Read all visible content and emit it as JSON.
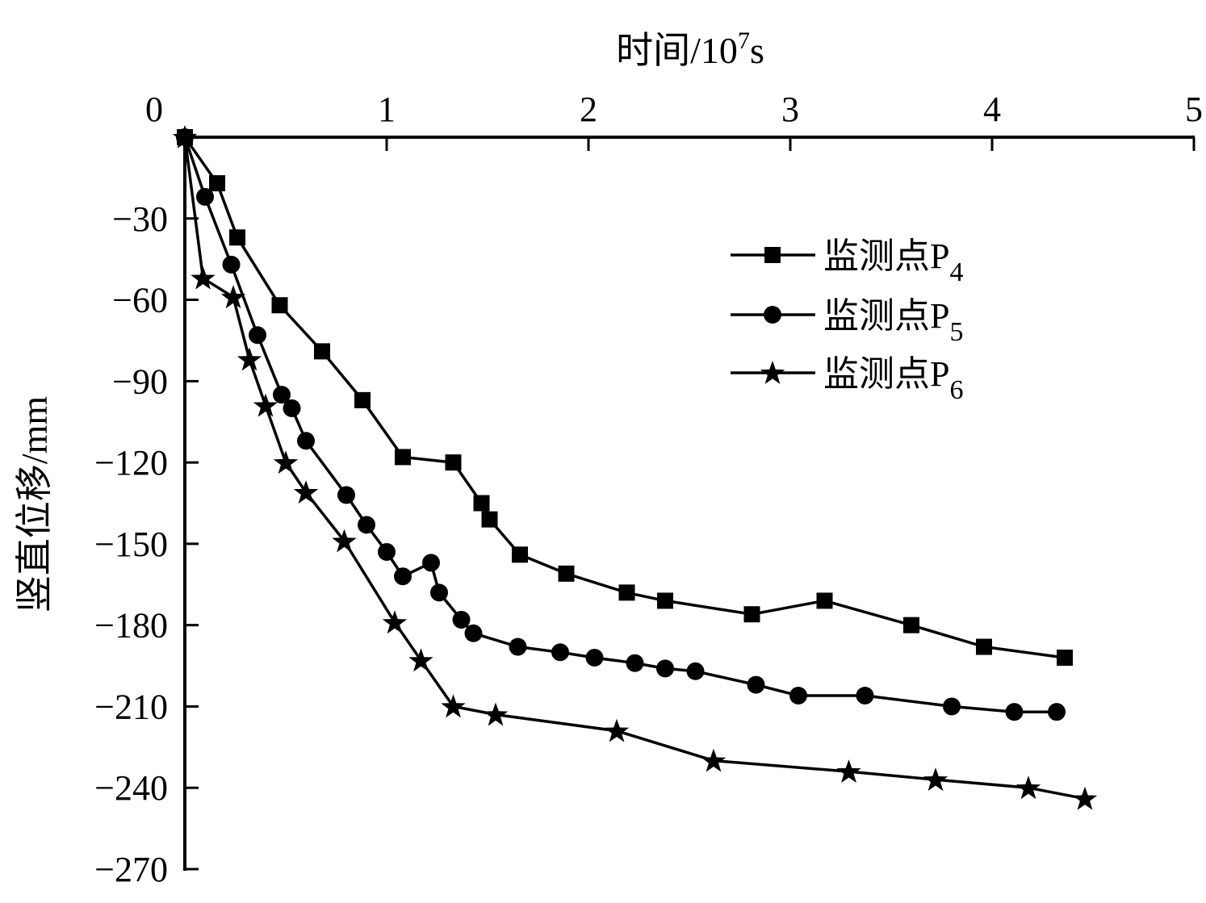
{
  "chart_data": {
    "type": "line",
    "title": "",
    "xlabel": "时间/10^7s",
    "xlabel_parts": {
      "main": "时间/10",
      "sup": "7",
      "unit": "s"
    },
    "ylabel": "竖直位移/mm",
    "xlim": [
      0,
      5
    ],
    "ylim": [
      -270,
      0
    ],
    "x_axis_position": "top",
    "x_ticks": [
      0,
      1,
      2,
      3,
      4,
      5
    ],
    "x_tick_labels": [
      "0",
      "1",
      "2",
      "3",
      "4",
      "5"
    ],
    "y_ticks": [
      0,
      -30,
      -60,
      -90,
      -120,
      -150,
      -180,
      -210,
      -240,
      -270
    ],
    "y_tick_labels": [
      "",
      "−30",
      "−60",
      "−90",
      "−120",
      "−150",
      "−180",
      "−210",
      "−240",
      "−270"
    ],
    "grid": false,
    "legend_position": "upper right (inside)",
    "series": [
      {
        "name": "监测点P4",
        "label_main": "监测点P",
        "label_sub": "4",
        "marker": "square",
        "color": "#000000",
        "x": [
          0,
          0.16,
          0.26,
          0.47,
          0.68,
          0.88,
          1.08,
          1.33,
          1.47,
          1.51,
          1.66,
          1.89,
          2.19,
          2.38,
          2.81,
          3.17,
          3.6,
          3.96,
          4.36
        ],
        "y": [
          0,
          -17,
          -37,
          -62,
          -79,
          -97,
          -118,
          -120,
          -135,
          -141,
          -154,
          -161,
          -168,
          -171,
          -176,
          -171,
          -180,
          -188,
          -192
        ]
      },
      {
        "name": "监测点P5",
        "label_main": "监测点P",
        "label_sub": "5",
        "marker": "circle",
        "color": "#000000",
        "x": [
          0,
          0.1,
          0.23,
          0.36,
          0.48,
          0.53,
          0.6,
          0.8,
          0.9,
          1.0,
          1.08,
          1.22,
          1.26,
          1.37,
          1.43,
          1.65,
          1.86,
          2.03,
          2.23,
          2.38,
          2.53,
          2.83,
          3.04,
          3.37,
          3.8,
          4.11,
          4.32
        ],
        "y": [
          0,
          -22,
          -47,
          -73,
          -95,
          -100,
          -112,
          -132,
          -143,
          -153,
          -162,
          -157,
          -168,
          -178,
          -183,
          -188,
          -190,
          -192,
          -194,
          -196,
          -197,
          -202,
          -206,
          -206,
          -210,
          -212,
          -212
        ]
      },
      {
        "name": "监测点P6",
        "label_main": "监测点P",
        "label_sub": "6",
        "marker": "star",
        "color": "#000000",
        "x": [
          0,
          0.09,
          0.24,
          0.32,
          0.4,
          0.5,
          0.6,
          0.79,
          1.04,
          1.17,
          1.33,
          1.54,
          2.14,
          2.62,
          3.29,
          3.72,
          4.18,
          4.46
        ],
        "y": [
          0,
          -52,
          -59,
          -82,
          -99,
          -120,
          -131,
          -149,
          -179,
          -193,
          -210,
          -213,
          -219,
          -230,
          -234,
          -237,
          -240,
          -244
        ]
      }
    ]
  }
}
